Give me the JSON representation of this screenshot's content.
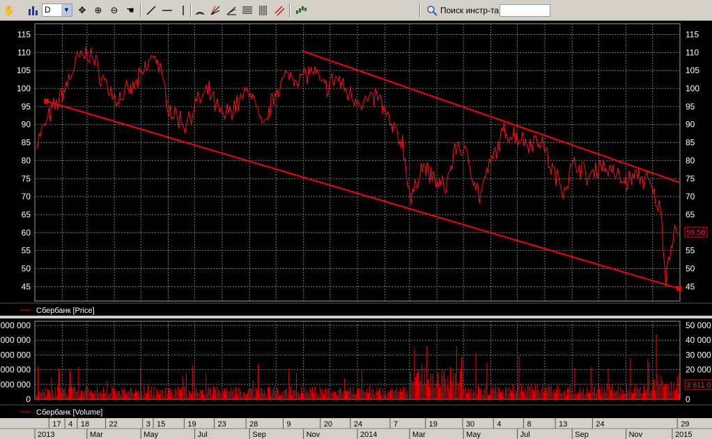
{
  "toolbar": {
    "period_value": "D",
    "search_label": "Поиск инстр-та",
    "search_value": "",
    "icons": [
      "hand-icon",
      "bar-chart-icon",
      "move-icon",
      "zoom-in-icon",
      "zoom-out-icon",
      "pan-icon",
      "line-tool-icon",
      "horizontal-line-icon",
      "vertical-line-icon",
      "arc-icon",
      "fan-icon",
      "angle-icon",
      "horizontal-lines-icon",
      "vertical-lines-icon",
      "channel-icon",
      "indicator-icon",
      "search-icon"
    ]
  },
  "price_panel": {
    "legend": "Сбербанк [Price]",
    "current_value": "59,56",
    "y_ticks": [
      45,
      50,
      55,
      60,
      65,
      70,
      75,
      80,
      85,
      90,
      95,
      100,
      105,
      110,
      115
    ],
    "ylim": [
      41,
      118
    ]
  },
  "volume_panel": {
    "legend": "Сбербанк [Volume]",
    "current_value": "3 611 0",
    "right_ticks": [
      "50 000",
      "40 000",
      "30 000",
      "20 000",
      "10 000",
      "0"
    ],
    "left_ticks": [
      "0 000 000",
      "0 000 000",
      "0 000 000",
      "0 000 000",
      "0 000 000",
      "0"
    ]
  },
  "time_axis": {
    "days": [
      "17",
      "4",
      "18",
      "22",
      "3",
      "15",
      "19",
      "23",
      "28",
      "9",
      "20",
      "24",
      "7",
      "19",
      "30",
      "4",
      "8",
      "13",
      "24",
      "29"
    ],
    "months": [
      "2013",
      "Mar",
      "May",
      "Jul",
      "Sep",
      "Nov",
      "2014",
      "Mar",
      "May",
      "Jul",
      "Sep",
      "Nov",
      "2015"
    ]
  },
  "colors": {
    "series": "#ff0000",
    "grid": "#7a7a7a",
    "background": "#000000",
    "toolbar": "#d4d0c8"
  },
  "chart_data": [
    {
      "type": "line",
      "title": "Сбербанк [Price]",
      "x": [
        "2013-01-03",
        "2013-01-17",
        "2013-02-04",
        "2013-02-18",
        "2013-03-04",
        "2013-03-18",
        "2013-04-03",
        "2013-04-22",
        "2013-05-03",
        "2013-05-17",
        "2013-06-03",
        "2013-06-20",
        "2013-07-03",
        "2013-07-17",
        "2013-08-01",
        "2013-08-19",
        "2013-09-02",
        "2013-09-16",
        "2013-10-01",
        "2013-10-16",
        "2013-10-28",
        "2013-11-11",
        "2013-11-25",
        "2013-12-09",
        "2013-12-20",
        "2014-01-10",
        "2014-01-24",
        "2014-02-07",
        "2014-02-21",
        "2014-03-03",
        "2014-03-14",
        "2014-03-28",
        "2014-04-10",
        "2014-04-24",
        "2014-05-07",
        "2014-05-19",
        "2014-06-02",
        "2014-06-16",
        "2014-06-30",
        "2014-07-14",
        "2014-07-28",
        "2014-08-08",
        "2014-08-22",
        "2014-09-05",
        "2014-09-19",
        "2014-10-02",
        "2014-10-16",
        "2014-10-30",
        "2014-11-14",
        "2014-11-26",
        "2014-12-10",
        "2014-12-16",
        "2014-12-22",
        "2014-12-29",
        "2014-12-31"
      ],
      "series": [
        {
          "values": [
            85,
            92,
            100,
            108,
            110,
            103,
            97,
            100,
            104,
            110,
            94,
            90,
            96,
            99,
            92,
            96,
            100,
            88,
            100,
            104,
            103,
            105,
            100,
            103,
            99,
            96,
            98,
            90,
            85,
            68,
            79,
            75,
            72,
            85,
            80,
            70,
            80,
            88,
            87,
            85,
            86,
            78,
            72,
            80,
            75,
            79,
            77,
            74,
            76,
            74,
            66,
            48,
            57,
            63,
            59.56
          ]
        }
      ],
      "ylim": [
        41,
        118
      ],
      "lines": [
        {
          "name": "Support trend line",
          "from": {
            "x": "2013-01-14",
            "y": 96.5
          },
          "to": {
            "x": "2014-12-31",
            "y": 44.5
          }
        },
        {
          "name": "Resistance trend line",
          "from": {
            "x": "2013-10-30",
            "y": 110.5
          },
          "to": {
            "x": "2014-12-31",
            "y": 74
          }
        }
      ]
    },
    {
      "type": "bar",
      "title": "Сбербанк [Volume]",
      "ylim": [
        0,
        50000
      ],
      "approx_daily_volume_profile": [
        {
          "period": "2013-01 to 2014-02",
          "typical": 6000,
          "peak": 24000
        },
        {
          "period": "2014-03 to 2014-04",
          "typical": 15000,
          "peak": 42000
        },
        {
          "period": "2014-05 to 2014-11",
          "typical": 7000,
          "peak": 38000
        },
        {
          "period": "2014-12",
          "typical": 12000,
          "peak": 47000
        }
      ],
      "last_value": 3611
    }
  ]
}
